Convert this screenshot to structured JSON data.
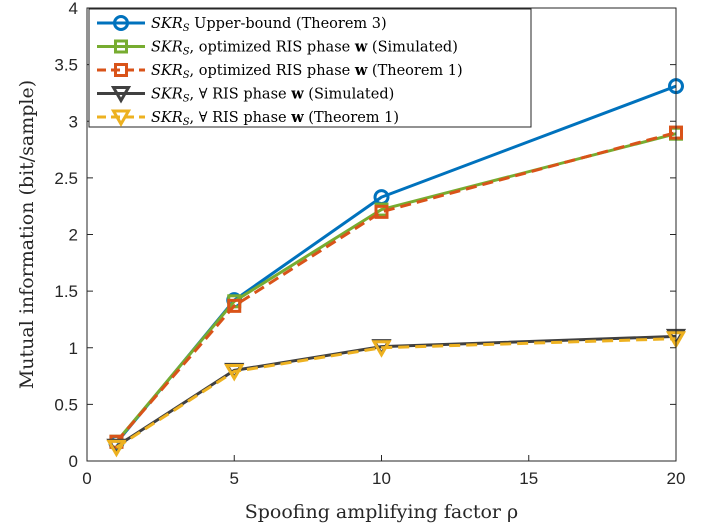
{
  "chart_data": {
    "type": "line",
    "xlabel": "Spoofing amplifying factor ρ",
    "ylabel": "Mutual information (bit/sample)",
    "xlim": [
      0,
      20
    ],
    "ylim": [
      0,
      4
    ],
    "xticks": [
      0,
      5,
      10,
      15,
      20
    ],
    "yticks": [
      0,
      0.5,
      1,
      1.5,
      2,
      2.5,
      3,
      3.5,
      4
    ],
    "xtick_labels": [
      "0",
      "5",
      "10",
      "15",
      "20"
    ],
    "ytick_labels": [
      "0",
      "0.5",
      "1",
      "1.5",
      "2",
      "2.5",
      "3",
      "3.5",
      "4"
    ],
    "grid": false,
    "legend_position": "top-left",
    "x": [
      1,
      5,
      10,
      20
    ],
    "series": [
      {
        "name": "SKRS Upper-bound (Theorem 3)",
        "legend_parts": [
          "SKR",
          "S",
          " Upper-bound (Theorem 3)"
        ],
        "values": [
          0.16,
          1.42,
          2.33,
          3.31
        ],
        "color": "#0072BD",
        "dash": "solid",
        "marker": "circle"
      },
      {
        "name": "SKRS, optimized RIS phase w (Simulated)",
        "legend_parts": [
          "SKR",
          "S",
          ", optimized RIS phase ",
          "w",
          " (Simulated)"
        ],
        "values": [
          0.17,
          1.41,
          2.22,
          2.89
        ],
        "color": "#77AC30",
        "dash": "solid",
        "marker": "square"
      },
      {
        "name": "SKRS, optimized RIS phase w (Theorem 1)",
        "legend_parts": [
          "SKR",
          "S",
          ", optimized RIS phase ",
          "w",
          " (Theorem 1)"
        ],
        "values": [
          0.17,
          1.37,
          2.2,
          2.9
        ],
        "color": "#D95319",
        "dash": "dashed",
        "marker": "square"
      },
      {
        "name": "SKRS, ∀ RIS phase w (Simulated)",
        "legend_parts": [
          "SKR",
          "S",
          ", ∀ RIS phase ",
          "w",
          " (Simulated)"
        ],
        "values": [
          0.13,
          0.8,
          1.01,
          1.1
        ],
        "color": "#404040",
        "dash": "solid",
        "marker": "triangle-down"
      },
      {
        "name": "SKRS, ∀ RIS phase w (Theorem 1)",
        "legend_parts": [
          "SKR",
          "S",
          ", ∀ RIS phase ",
          "w",
          " (Theorem 1)"
        ],
        "values": [
          0.12,
          0.79,
          1.0,
          1.08
        ],
        "color": "#EDB120",
        "dash": "dashed",
        "marker": "triangle-down"
      }
    ]
  }
}
